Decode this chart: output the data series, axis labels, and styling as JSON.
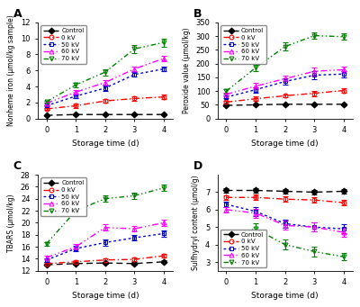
{
  "x": [
    0,
    1,
    2,
    3,
    4
  ],
  "panel_A": {
    "title": "A",
    "ylabel": "Nonheme iron (μmol/kg sample)",
    "xlabel": "Storage time (d)",
    "ylim": [
      0,
      12
    ],
    "yticks": [
      0,
      2,
      4,
      6,
      8,
      10,
      12
    ],
    "control": {
      "y": [
        0.4,
        0.5,
        0.5,
        0.5,
        0.5
      ],
      "err": [
        0.05,
        0.05,
        0.05,
        0.05,
        0.05
      ]
    },
    "kv0": {
      "y": [
        1.2,
        1.6,
        2.2,
        2.5,
        2.7
      ],
      "err": [
        0.1,
        0.25,
        0.2,
        0.3,
        0.3
      ]
    },
    "kv50": {
      "y": [
        1.6,
        2.8,
        3.8,
        5.5,
        6.2
      ],
      "err": [
        0.1,
        0.2,
        0.3,
        0.3,
        0.3
      ]
    },
    "kv60": {
      "y": [
        1.9,
        3.3,
        4.5,
        6.2,
        7.5
      ],
      "err": [
        0.1,
        0.3,
        0.3,
        0.3,
        0.3
      ]
    },
    "kv70": {
      "y": [
        2.1,
        4.2,
        5.8,
        8.7,
        9.5
      ],
      "err": [
        0.1,
        0.3,
        0.4,
        0.5,
        0.5
      ]
    }
  },
  "panel_B": {
    "title": "B",
    "ylabel": "Peroxide value (μmol/kg)",
    "xlabel": "Storage time (d)",
    "ylim": [
      0,
      350
    ],
    "yticks": [
      0,
      50,
      100,
      150,
      200,
      250,
      300,
      350
    ],
    "control": {
      "y": [
        48,
        50,
        52,
        52,
        52
      ],
      "err": [
        2,
        3,
        3,
        3,
        3
      ]
    },
    "kv0": {
      "y": [
        60,
        72,
        83,
        92,
        102
      ],
      "err": [
        4,
        8,
        6,
        10,
        8
      ]
    },
    "kv50": {
      "y": [
        78,
        105,
        135,
        158,
        162
      ],
      "err": [
        5,
        10,
        12,
        15,
        12
      ]
    },
    "kv60": {
      "y": [
        88,
        118,
        145,
        172,
        178
      ],
      "err": [
        5,
        12,
        10,
        15,
        12
      ]
    },
    "kv70": {
      "y": [
        100,
        185,
        262,
        302,
        298
      ],
      "err": [
        8,
        12,
        15,
        12,
        12
      ]
    }
  },
  "panel_C": {
    "title": "C",
    "ylabel": "TBARS (μmol/kg)",
    "xlabel": "Storage time (d)",
    "ylim": [
      12,
      28
    ],
    "yticks": [
      12,
      14,
      16,
      18,
      20,
      22,
      24,
      26,
      28
    ],
    "control": {
      "y": [
        13.0,
        13.2,
        13.3,
        13.2,
        13.5
      ],
      "err": [
        0.2,
        0.2,
        0.2,
        0.2,
        0.2
      ]
    },
    "kv0": {
      "y": [
        13.2,
        13.5,
        13.8,
        13.9,
        14.5
      ],
      "err": [
        0.2,
        0.3,
        0.3,
        0.3,
        0.3
      ]
    },
    "kv50": {
      "y": [
        13.8,
        15.7,
        16.7,
        17.5,
        18.2
      ],
      "err": [
        0.3,
        0.5,
        0.5,
        0.5,
        0.5
      ]
    },
    "kv60": {
      "y": [
        14.2,
        16.0,
        19.2,
        19.0,
        20.0
      ],
      "err": [
        0.3,
        0.5,
        0.5,
        0.5,
        0.5
      ]
    },
    "kv70": {
      "y": [
        16.5,
        22.0,
        24.0,
        24.5,
        25.8
      ],
      "err": [
        0.3,
        0.5,
        0.5,
        0.5,
        0.5
      ]
    }
  },
  "panel_D": {
    "title": "D",
    "ylabel": "Sulfhydryl content (μmol/g)",
    "xlabel": "Storage time (d)",
    "ylim": [
      2.5,
      8
    ],
    "yticks": [
      3,
      4,
      5,
      6,
      7
    ],
    "control": {
      "y": [
        7.1,
        7.1,
        7.05,
        7.0,
        7.05
      ],
      "err": [
        0.12,
        0.12,
        0.12,
        0.12,
        0.12
      ]
    },
    "kv0": {
      "y": [
        6.7,
        6.7,
        6.6,
        6.55,
        6.4
      ],
      "err": [
        0.12,
        0.15,
        0.15,
        0.15,
        0.15
      ]
    },
    "kv50": {
      "y": [
        6.3,
        5.9,
        5.2,
        5.0,
        4.9
      ],
      "err": [
        0.15,
        0.25,
        0.25,
        0.25,
        0.25
      ]
    },
    "kv60": {
      "y": [
        6.0,
        5.8,
        5.1,
        5.0,
        4.7
      ],
      "err": [
        0.15,
        0.25,
        0.25,
        0.25,
        0.25
      ]
    },
    "kv70": {
      "y": [
        4.5,
        4.9,
        4.0,
        3.6,
        3.3
      ],
      "err": [
        0.2,
        0.3,
        0.3,
        0.3,
        0.2
      ]
    }
  },
  "series": {
    "control": {
      "color": "#000000",
      "linestyle": "--",
      "marker": "D",
      "label": "Control"
    },
    "kv0": {
      "color": "#ff0000",
      "linestyle": "--",
      "marker": "o",
      "label": "0 kV"
    },
    "kv50": {
      "color": "#0000cc",
      "linestyle": ":",
      "marker": "o",
      "label": "50 kV"
    },
    "kv60": {
      "color": "#ff00ff",
      "linestyle": "-.",
      "marker": "o",
      "label": "60 kV"
    },
    "kv70": {
      "color": "#008000",
      "linestyle": "-.",
      "marker": "o",
      "label": "70 kV"
    }
  },
  "bg_color": "#ffffff",
  "legend_D_loc": "lower left"
}
